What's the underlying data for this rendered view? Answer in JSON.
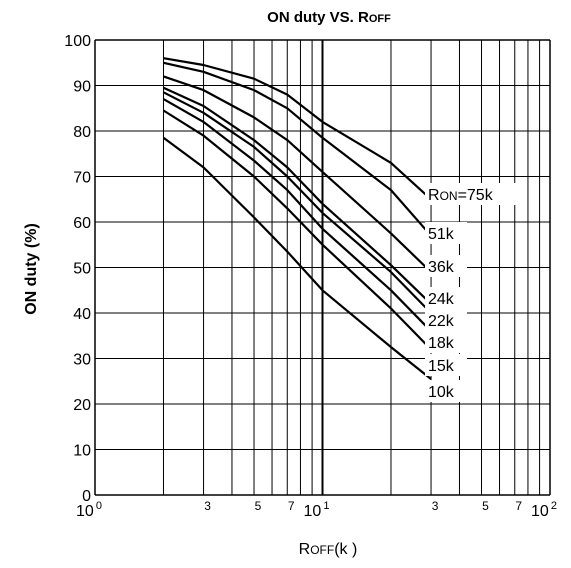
{
  "chart_data": {
    "type": "line",
    "title": "ON duty VS. ROFF",
    "title_parts": {
      "main": "ON duty VS. ",
      "cap": "R",
      "small": "OFF"
    },
    "xlabel": "ROFF(k )",
    "xlabel_parts": {
      "cap": "R",
      "small": "OFF",
      "rest": "(k  )"
    },
    "ylabel": "ON duty (%)",
    "x_scale": "log",
    "xlim": [
      1,
      100
    ],
    "ylim": [
      0,
      100
    ],
    "grid": true,
    "y_ticks": [
      0,
      10,
      20,
      30,
      40,
      50,
      60,
      70,
      80,
      90,
      100
    ],
    "x_major_ticks": [
      {
        "value": 1,
        "base": "10",
        "exp": "0"
      },
      {
        "value": 10,
        "base": "10",
        "exp": "1"
      },
      {
        "value": 100,
        "base": "10",
        "exp": "2"
      }
    ],
    "x_minor_ticks": [
      {
        "value": 3,
        "label": "3"
      },
      {
        "value": 5,
        "label": "5"
      },
      {
        "value": 7,
        "label": "7"
      },
      {
        "value": 30,
        "label": "3"
      },
      {
        "value": 50,
        "label": "5"
      },
      {
        "value": 70,
        "label": "7"
      }
    ],
    "x_gridlines": [
      2,
      3,
      4,
      5,
      6,
      7,
      8,
      9,
      10,
      20,
      30,
      40,
      50,
      60,
      70,
      80,
      90
    ],
    "series": [
      {
        "name": "RON=75k",
        "label_parts": {
          "cap": "R",
          "small": "ON",
          "rest": "=75k"
        },
        "x": [
          2,
          3,
          5,
          7,
          10,
          20,
          30
        ],
        "y": [
          96,
          94.5,
          91.5,
          88,
          82,
          73,
          65
        ]
      },
      {
        "name": "51k",
        "x": [
          2,
          3,
          5,
          7,
          10,
          20,
          30
        ],
        "y": [
          95,
          93,
          89,
          85,
          78.5,
          67,
          57
        ]
      },
      {
        "name": "36k",
        "x": [
          2,
          3,
          5,
          7,
          10,
          20,
          30
        ],
        "y": [
          92,
          89,
          83,
          78,
          71,
          57.5,
          49
        ]
      },
      {
        "name": "24k",
        "x": [
          2,
          3,
          5,
          7,
          10,
          20,
          30
        ],
        "y": [
          89.5,
          85.5,
          78,
          72,
          64,
          50.5,
          42
        ]
      },
      {
        "name": "22k",
        "x": [
          2,
          3,
          5,
          7,
          10,
          20,
          30
        ],
        "y": [
          88.5,
          84,
          76.5,
          70,
          62,
          49,
          40
        ]
      },
      {
        "name": "18k",
        "x": [
          2,
          3,
          5,
          7,
          10,
          20,
          30
        ],
        "y": [
          87,
          82,
          73.5,
          67,
          58.5,
          45,
          36
        ]
      },
      {
        "name": "15k",
        "x": [
          2,
          3,
          5,
          7,
          10,
          20,
          30
        ],
        "y": [
          84.5,
          79,
          70,
          63,
          55,
          41,
          32
        ]
      },
      {
        "name": "10k",
        "x": [
          2,
          3,
          5,
          7,
          10,
          20,
          30
        ],
        "y": [
          78.5,
          72,
          61,
          53.5,
          45,
          32.5,
          25.5
        ]
      }
    ]
  }
}
